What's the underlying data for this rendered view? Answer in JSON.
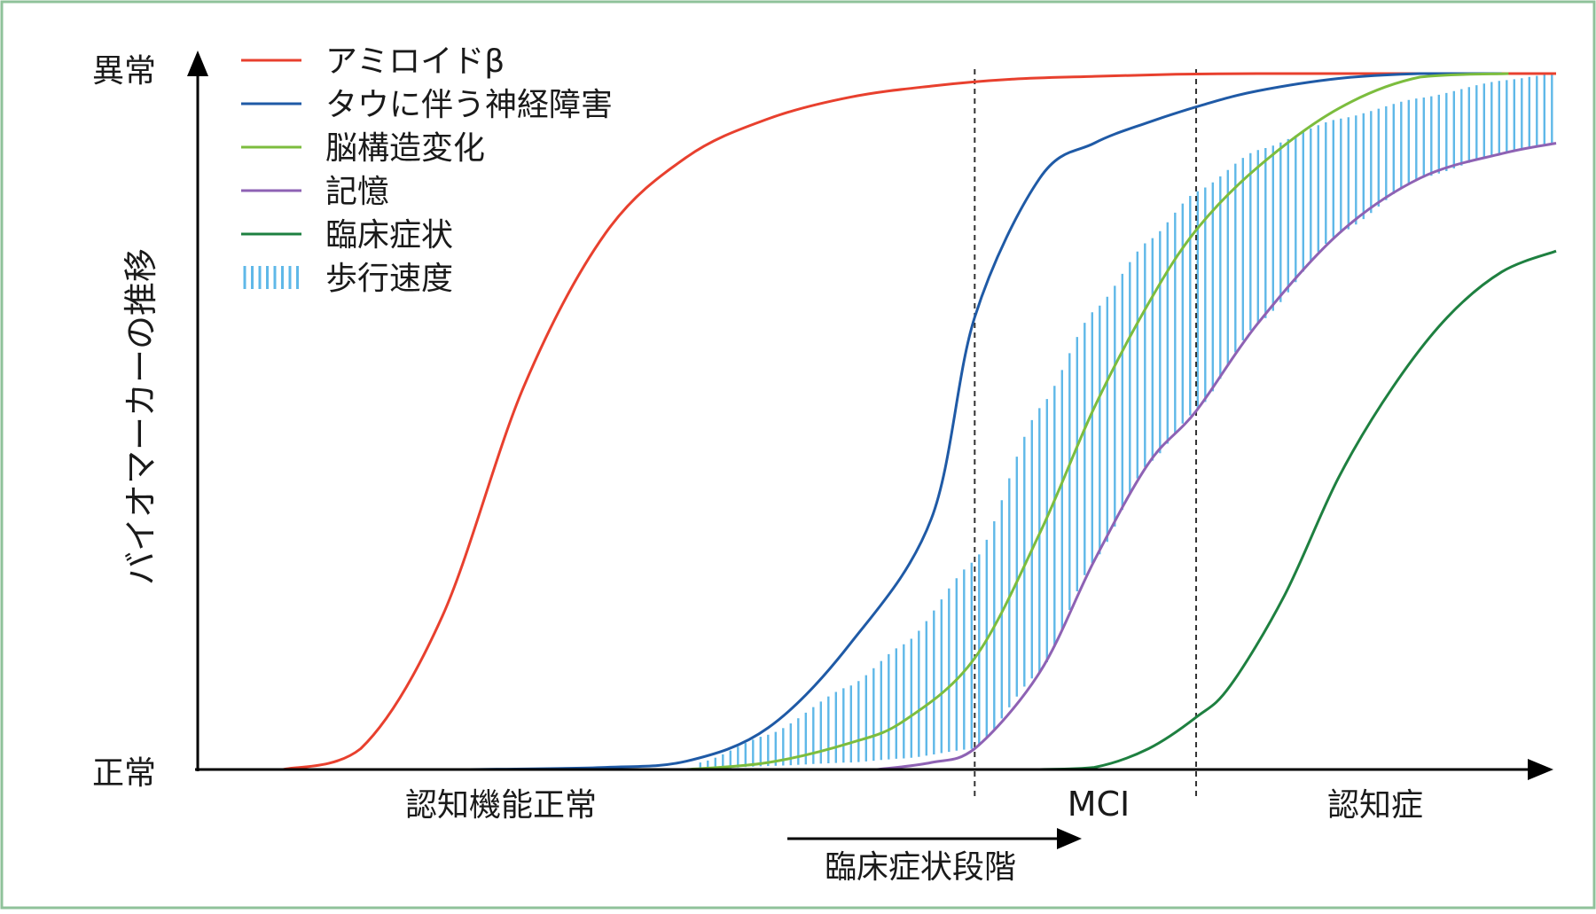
{
  "chart_data": {
    "type": "line",
    "ylabel": "バイオマーカーの推移",
    "y_ticks": {
      "top": "異常",
      "bottom": "正常"
    },
    "x_ticks": [
      "認知機能正常",
      "MCI",
      "認知症"
    ],
    "arrow_label": "臨床症状段階",
    "x_domain": [
      0,
      100
    ],
    "y_domain": [
      0,
      100
    ],
    "stage_boundaries": [
      57.2,
      73.5
    ],
    "series": [
      {
        "name": "アミロイドβ",
        "color": "#e8402e",
        "style": "line",
        "x": [
          6.3,
          12,
          18,
          24,
          30,
          36,
          42,
          48,
          54,
          60,
          66,
          72,
          78,
          84,
          90,
          100
        ],
        "y": [
          0,
          3,
          22,
          55,
          77,
          88,
          93.5,
          96.6,
          98.2,
          99.2,
          99.6,
          99.9,
          100,
          100,
          100,
          100
        ]
      },
      {
        "name": "タウに伴う神経障害",
        "color": "#1f5aa6",
        "style": "line",
        "x": [
          20,
          30,
          36,
          42,
          48,
          54,
          57.2,
          62,
          66,
          70,
          74,
          78,
          84,
          90,
          96
        ],
        "y": [
          0,
          0.3,
          1.2,
          6,
          18,
          36,
          65,
          85,
          90,
          93,
          95.5,
          97.5,
          99.3,
          100,
          100
        ]
      },
      {
        "name": "脳構造変化",
        "color": "#7cbd3e",
        "style": "line",
        "x": [
          36,
          42,
          48,
          52,
          57.2,
          62,
          66,
          70,
          73.5,
          78,
          84,
          90,
          96.5
        ],
        "y": [
          0,
          1,
          3.8,
          7,
          16,
          34,
          52,
          67,
          77.5,
          86.5,
          95,
          99.5,
          100
        ]
      },
      {
        "name": "記憶",
        "color": "#8e62b4",
        "style": "line",
        "x": [
          50,
          54,
          57.2,
          62,
          66,
          70,
          73.5,
          78,
          84,
          90,
          96,
          100
        ],
        "y": [
          0,
          1,
          3,
          14,
          30,
          44,
          51.5,
          64,
          77,
          85,
          88.5,
          90
        ]
      },
      {
        "name": "臨床症状",
        "color": "#1e8040",
        "style": "line",
        "x": [
          62,
          66,
          70,
          73.5,
          76,
          80,
          84,
          88,
          92,
          96,
          100
        ],
        "y": [
          0,
          0.3,
          3,
          7.5,
          12,
          25,
          42,
          55,
          65,
          71.5,
          74.5
        ]
      },
      {
        "name": "歩行速度",
        "color": "#5fb8e8",
        "style": "hatch",
        "x": [
          37,
          42,
          48,
          52,
          57.2,
          62,
          66,
          70,
          73.5,
          78,
          84,
          90,
          96,
          100
        ],
        "y_low": [
          0,
          0.5,
          1,
          1.6,
          3,
          14,
          30,
          44,
          51.5,
          64,
          77,
          85,
          88.5,
          90
        ],
        "y_high": [
          1,
          5,
          12,
          18,
          30,
          52,
          66,
          76,
          83,
          89,
          93.5,
          96.5,
          99,
          100
        ]
      }
    ]
  }
}
